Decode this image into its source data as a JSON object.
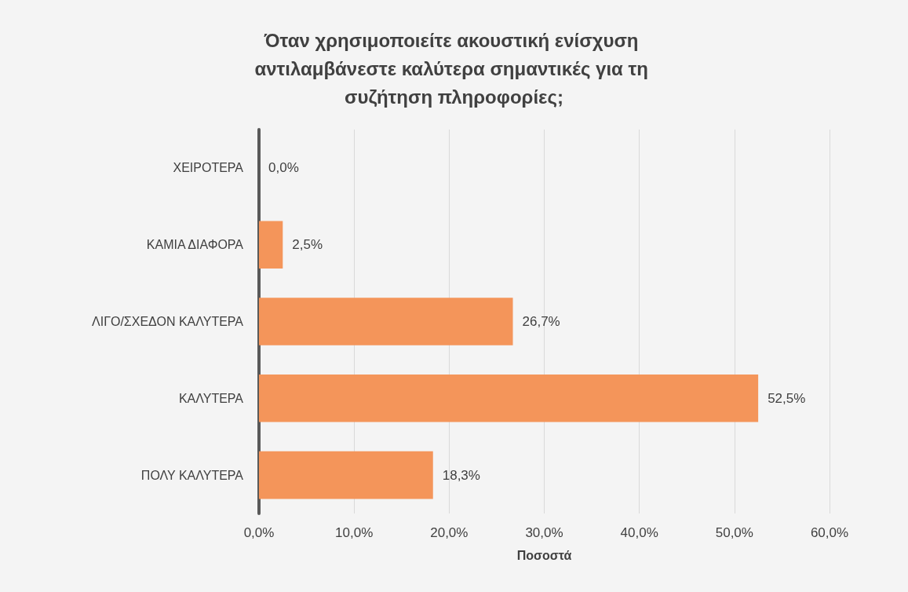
{
  "chart_data": {
    "type": "bar",
    "orientation": "horizontal",
    "title": "Όταν χρησιμοποιείτε ακουστική ενίσχυση αντιλαμβάνεστε καλύτερα σημαντικές για τη συζήτηση πληροφορίες;",
    "xlabel": "Ποσοστά",
    "categories": [
      "ΧΕΙΡΟΤΕΡΑ",
      "ΚΑΜΙΑ ΔΙΑΦΟΡΑ",
      "ΛΙΓΟ/ΣΧΕΔΟΝ ΚΑΛΥΤΕΡΑ",
      "ΚΑΛΥΤΕΡΑ",
      "ΠΟΛΥ ΚΑΛΥΤΕΡΑ"
    ],
    "values": [
      0,
      2.5,
      26.7,
      52.5,
      18.3
    ],
    "value_labels": [
      "0,0%",
      "2,5%",
      "26,7%",
      "52,5%",
      "18,3%"
    ],
    "color": "#f4955a",
    "xlim": [
      0,
      60
    ],
    "xticks": [
      {
        "value": 0,
        "label": "0,0%"
      },
      {
        "value": 10,
        "label": "10,0%"
      },
      {
        "value": 20,
        "label": "20,0%"
      },
      {
        "value": 30,
        "label": "30,0%"
      },
      {
        "value": 40,
        "label": "40,0%"
      },
      {
        "value": 50,
        "label": "50,0%"
      },
      {
        "value": 60,
        "label": "60,0%"
      }
    ],
    "grid": "x"
  }
}
